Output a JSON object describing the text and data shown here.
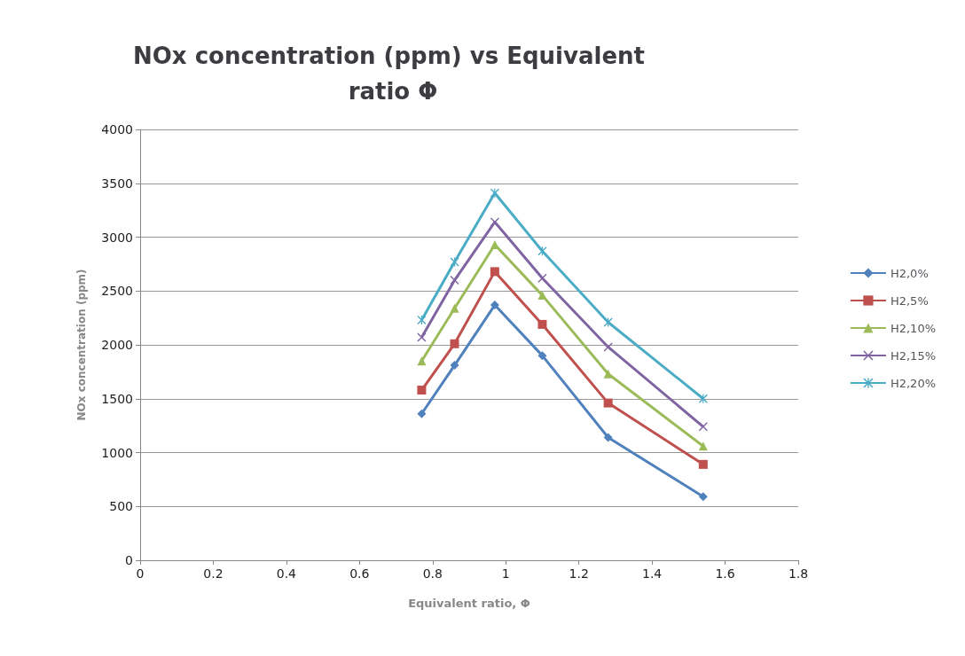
{
  "chart_data": {
    "type": "line",
    "title": "NOx concentration (ppm) vs Equivalent ratio Φ",
    "xlabel": "Equivalent ratio, Φ",
    "ylabel": "NOx concentration (ppm)",
    "x": [
      0.77,
      0.86,
      0.97,
      1.1,
      1.28,
      1.54
    ],
    "series": [
      {
        "name": "H2,0%",
        "color": "#4f81bd",
        "marker": "diamond",
        "values": [
          1360,
          1810,
          2370,
          1900,
          1140,
          590
        ]
      },
      {
        "name": "H2,5%",
        "color": "#c0504d",
        "marker": "square",
        "values": [
          1580,
          2010,
          2680,
          2190,
          1460,
          890
        ]
      },
      {
        "name": "H2,10%",
        "color": "#9bbb59",
        "marker": "triangle",
        "values": [
          1850,
          2340,
          2930,
          2460,
          1730,
          1060
        ]
      },
      {
        "name": "H2,15%",
        "color": "#8064a2",
        "marker": "cross",
        "values": [
          2070,
          2600,
          3140,
          2620,
          1980,
          1240
        ]
      },
      {
        "name": "H2,20%",
        "color": "#4bacc6",
        "marker": "star",
        "values": [
          2230,
          2770,
          3410,
          2870,
          2210,
          1500
        ]
      }
    ],
    "xlim": [
      0,
      1.8
    ],
    "xticks": [
      0,
      0.2,
      0.4,
      0.6,
      0.8,
      1,
      1.2,
      1.4,
      1.6,
      1.8
    ],
    "ylim": [
      0,
      4000
    ],
    "yticks": [
      0,
      500,
      1000,
      1500,
      2000,
      2500,
      3000,
      3500,
      4000
    ],
    "grid": "y",
    "legend": "right"
  }
}
